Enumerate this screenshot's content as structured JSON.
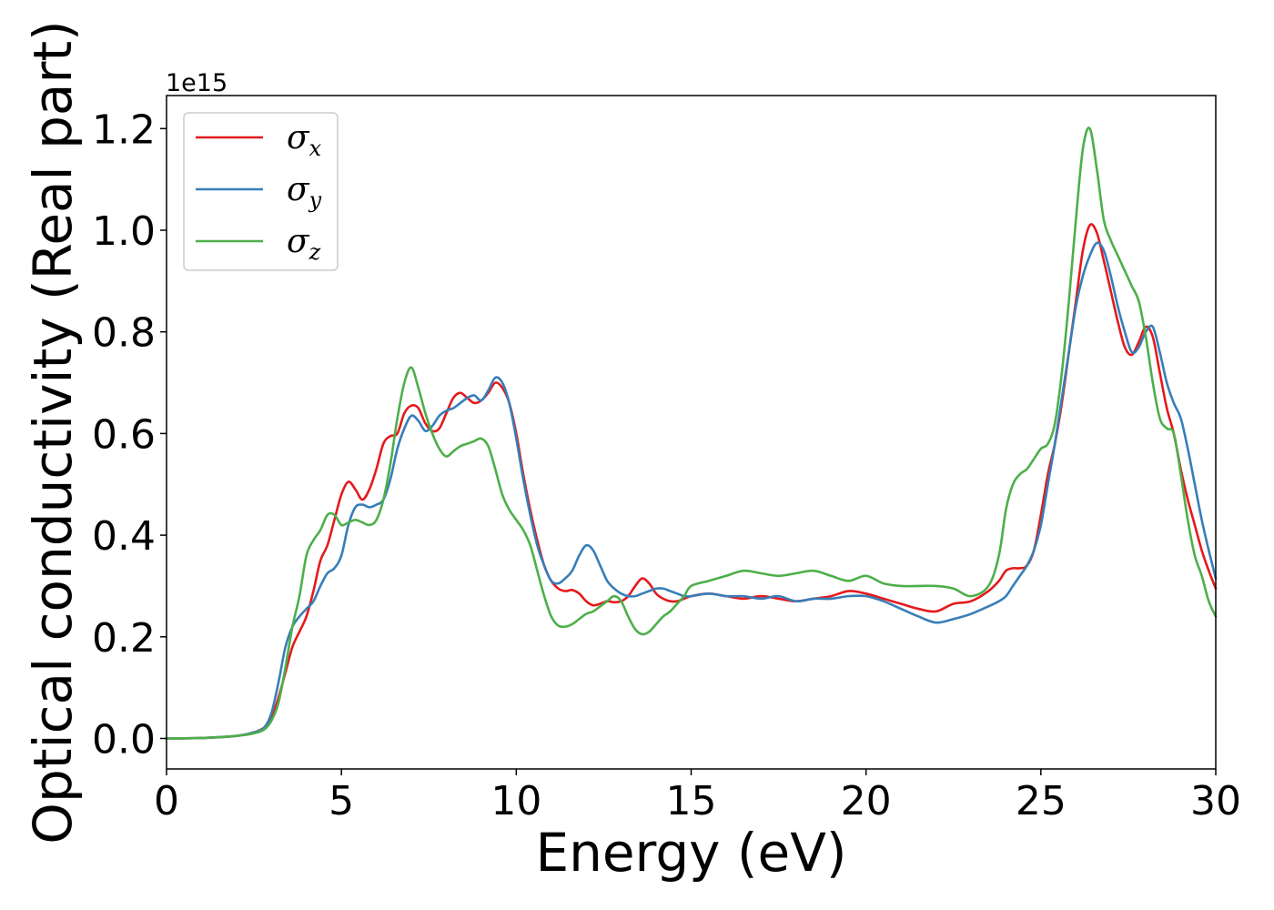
{
  "chart_data": {
    "type": "line",
    "title": "",
    "xlabel": "Energy (eV)",
    "ylabel": "Optical conductivity (Real part)",
    "y_offset_label": "1e15",
    "xlim": [
      0,
      30
    ],
    "ylim": [
      -0.06,
      1.265
    ],
    "x_ticks": [
      0,
      5,
      10,
      15,
      20,
      25,
      30
    ],
    "x_tick_labels": [
      "0",
      "5",
      "10",
      "15",
      "20",
      "25",
      "30"
    ],
    "y_ticks": [
      0.0,
      0.2,
      0.4,
      0.6,
      0.8,
      1.0,
      1.2
    ],
    "y_tick_labels": [
      "0.0",
      "0.2",
      "0.4",
      "0.6",
      "0.8",
      "1.0",
      "1.2"
    ],
    "grid": false,
    "legend_position": "top-left",
    "series": [
      {
        "name": "σx",
        "name_base": "σ",
        "name_sub": "x",
        "color": "#e41a1c",
        "x": [
          0,
          1,
          2,
          2.5,
          2.8,
          3.0,
          3.2,
          3.4,
          3.6,
          3.8,
          4.0,
          4.2,
          4.4,
          4.6,
          4.8,
          5.0,
          5.2,
          5.4,
          5.6,
          5.8,
          6.0,
          6.2,
          6.4,
          6.6,
          6.8,
          7.0,
          7.2,
          7.4,
          7.6,
          7.8,
          8.0,
          8.2,
          8.4,
          8.6,
          8.8,
          9.0,
          9.2,
          9.4,
          9.6,
          9.8,
          10.0,
          10.2,
          10.4,
          10.6,
          10.8,
          11.0,
          11.2,
          11.4,
          11.6,
          11.8,
          12.0,
          12.2,
          12.4,
          12.6,
          12.8,
          13.0,
          13.2,
          13.4,
          13.6,
          13.8,
          14.0,
          14.2,
          14.4,
          14.6,
          14.8,
          15.0,
          15.5,
          16.0,
          16.5,
          17.0,
          17.5,
          18.0,
          18.5,
          19.0,
          19.5,
          20.0,
          20.5,
          21.0,
          21.5,
          22.0,
          22.5,
          23.0,
          23.5,
          23.8,
          24.0,
          24.2,
          24.4,
          24.6,
          24.8,
          25.0,
          25.2,
          25.4,
          25.6,
          25.8,
          26.0,
          26.2,
          26.4,
          26.6,
          26.8,
          27.0,
          27.2,
          27.4,
          27.6,
          27.8,
          28.0,
          28.2,
          28.4,
          28.6,
          28.8,
          29.0,
          29.2,
          29.4,
          29.6,
          29.8,
          30.0
        ],
        "y": [
          0.0,
          0.001,
          0.005,
          0.012,
          0.022,
          0.04,
          0.08,
          0.13,
          0.18,
          0.21,
          0.24,
          0.29,
          0.35,
          0.38,
          0.43,
          0.48,
          0.505,
          0.49,
          0.47,
          0.49,
          0.53,
          0.58,
          0.595,
          0.6,
          0.64,
          0.655,
          0.65,
          0.62,
          0.605,
          0.61,
          0.64,
          0.67,
          0.68,
          0.67,
          0.66,
          0.665,
          0.68,
          0.7,
          0.69,
          0.66,
          0.6,
          0.52,
          0.45,
          0.39,
          0.34,
          0.31,
          0.295,
          0.29,
          0.292,
          0.285,
          0.27,
          0.262,
          0.265,
          0.27,
          0.268,
          0.27,
          0.28,
          0.3,
          0.315,
          0.305,
          0.285,
          0.275,
          0.27,
          0.27,
          0.275,
          0.28,
          0.285,
          0.28,
          0.275,
          0.28,
          0.275,
          0.27,
          0.275,
          0.28,
          0.29,
          0.285,
          0.275,
          0.265,
          0.255,
          0.25,
          0.265,
          0.27,
          0.29,
          0.31,
          0.33,
          0.335,
          0.335,
          0.34,
          0.37,
          0.44,
          0.52,
          0.58,
          0.66,
          0.76,
          0.86,
          0.96,
          1.01,
          0.995,
          0.94,
          0.88,
          0.82,
          0.77,
          0.755,
          0.78,
          0.81,
          0.79,
          0.72,
          0.65,
          0.6,
          0.53,
          0.47,
          0.42,
          0.37,
          0.33,
          0.295
        ]
      },
      {
        "name": "σy",
        "name_base": "σ",
        "name_sub": "y",
        "color": "#377eb8",
        "x": [
          0,
          1,
          2,
          2.5,
          2.8,
          3.0,
          3.2,
          3.4,
          3.6,
          3.8,
          4.0,
          4.2,
          4.4,
          4.6,
          4.8,
          5.0,
          5.2,
          5.4,
          5.6,
          5.8,
          6.0,
          6.2,
          6.4,
          6.6,
          6.8,
          7.0,
          7.2,
          7.4,
          7.6,
          7.8,
          8.0,
          8.2,
          8.4,
          8.6,
          8.8,
          9.0,
          9.2,
          9.4,
          9.6,
          9.8,
          10.0,
          10.2,
          10.4,
          10.6,
          10.8,
          11.0,
          11.2,
          11.4,
          11.6,
          11.8,
          12.0,
          12.2,
          12.4,
          12.6,
          12.8,
          13.0,
          13.2,
          13.4,
          13.6,
          13.8,
          14.0,
          14.2,
          14.4,
          14.6,
          14.8,
          15.0,
          15.5,
          16.0,
          16.5,
          17.0,
          17.5,
          18.0,
          18.5,
          19.0,
          19.5,
          20.0,
          20.5,
          21.0,
          21.5,
          22.0,
          22.5,
          23.0,
          23.5,
          23.8,
          24.0,
          24.2,
          24.4,
          24.6,
          24.8,
          25.0,
          25.2,
          25.4,
          25.6,
          25.8,
          26.0,
          26.2,
          26.4,
          26.6,
          26.8,
          27.0,
          27.2,
          27.4,
          27.6,
          27.8,
          28.0,
          28.2,
          28.4,
          28.6,
          28.8,
          29.0,
          29.2,
          29.4,
          29.6,
          29.8,
          30.0
        ],
        "y": [
          0.0,
          0.001,
          0.005,
          0.012,
          0.022,
          0.05,
          0.11,
          0.18,
          0.22,
          0.24,
          0.255,
          0.27,
          0.3,
          0.325,
          0.335,
          0.36,
          0.42,
          0.455,
          0.46,
          0.455,
          0.46,
          0.47,
          0.51,
          0.57,
          0.61,
          0.635,
          0.625,
          0.605,
          0.615,
          0.635,
          0.645,
          0.65,
          0.66,
          0.67,
          0.675,
          0.665,
          0.685,
          0.71,
          0.7,
          0.66,
          0.59,
          0.51,
          0.44,
          0.38,
          0.34,
          0.31,
          0.305,
          0.315,
          0.33,
          0.36,
          0.38,
          0.37,
          0.34,
          0.31,
          0.295,
          0.285,
          0.28,
          0.28,
          0.285,
          0.29,
          0.295,
          0.295,
          0.29,
          0.285,
          0.28,
          0.28,
          0.285,
          0.28,
          0.28,
          0.275,
          0.28,
          0.27,
          0.275,
          0.275,
          0.28,
          0.28,
          0.27,
          0.255,
          0.24,
          0.228,
          0.235,
          0.245,
          0.26,
          0.27,
          0.28,
          0.3,
          0.32,
          0.34,
          0.37,
          0.42,
          0.5,
          0.58,
          0.67,
          0.76,
          0.85,
          0.91,
          0.95,
          0.975,
          0.96,
          0.91,
          0.85,
          0.8,
          0.76,
          0.77,
          0.8,
          0.81,
          0.76,
          0.7,
          0.66,
          0.63,
          0.57,
          0.5,
          0.43,
          0.37,
          0.315
        ]
      },
      {
        "name": "σz",
        "name_base": "σ",
        "name_sub": "z",
        "color": "#4daf4a",
        "x": [
          0,
          1,
          2,
          2.5,
          2.8,
          3.0,
          3.2,
          3.4,
          3.6,
          3.8,
          4.0,
          4.2,
          4.4,
          4.6,
          4.8,
          5.0,
          5.2,
          5.4,
          5.6,
          5.8,
          6.0,
          6.2,
          6.4,
          6.6,
          6.8,
          7.0,
          7.2,
          7.4,
          7.6,
          7.8,
          8.0,
          8.2,
          8.4,
          8.6,
          8.8,
          9.0,
          9.2,
          9.4,
          9.6,
          9.8,
          10.0,
          10.2,
          10.4,
          10.6,
          10.8,
          11.0,
          11.2,
          11.4,
          11.6,
          11.8,
          12.0,
          12.2,
          12.4,
          12.6,
          12.8,
          13.0,
          13.2,
          13.4,
          13.6,
          13.8,
          14.0,
          14.2,
          14.4,
          14.6,
          14.8,
          15.0,
          15.5,
          16.0,
          16.5,
          17.0,
          17.5,
          18.0,
          18.5,
          19.0,
          19.5,
          20.0,
          20.5,
          21.0,
          21.5,
          22.0,
          22.5,
          23.0,
          23.5,
          23.8,
          24.0,
          24.2,
          24.4,
          24.6,
          24.8,
          25.0,
          25.2,
          25.4,
          25.6,
          25.8,
          26.0,
          26.2,
          26.4,
          26.6,
          26.8,
          27.0,
          27.2,
          27.4,
          27.6,
          27.8,
          28.0,
          28.2,
          28.4,
          28.6,
          28.8,
          29.0,
          29.2,
          29.4,
          29.6,
          29.8,
          30.0
        ],
        "y": [
          0.0,
          0.001,
          0.005,
          0.01,
          0.018,
          0.035,
          0.07,
          0.14,
          0.22,
          0.28,
          0.36,
          0.39,
          0.41,
          0.44,
          0.44,
          0.42,
          0.425,
          0.43,
          0.425,
          0.42,
          0.43,
          0.47,
          0.54,
          0.63,
          0.7,
          0.73,
          0.69,
          0.64,
          0.6,
          0.57,
          0.555,
          0.565,
          0.575,
          0.58,
          0.585,
          0.59,
          0.575,
          0.53,
          0.48,
          0.45,
          0.43,
          0.41,
          0.38,
          0.33,
          0.28,
          0.24,
          0.222,
          0.22,
          0.225,
          0.235,
          0.245,
          0.25,
          0.26,
          0.27,
          0.28,
          0.27,
          0.24,
          0.215,
          0.205,
          0.21,
          0.225,
          0.24,
          0.25,
          0.265,
          0.28,
          0.3,
          0.31,
          0.32,
          0.33,
          0.325,
          0.32,
          0.325,
          0.33,
          0.32,
          0.31,
          0.32,
          0.305,
          0.3,
          0.3,
          0.3,
          0.295,
          0.28,
          0.3,
          0.36,
          0.45,
          0.5,
          0.52,
          0.53,
          0.55,
          0.57,
          0.58,
          0.62,
          0.72,
          0.86,
          1.02,
          1.16,
          1.2,
          1.12,
          1.02,
          0.98,
          0.95,
          0.92,
          0.89,
          0.86,
          0.79,
          0.7,
          0.63,
          0.61,
          0.6,
          0.52,
          0.43,
          0.36,
          0.32,
          0.27,
          0.24
        ]
      }
    ]
  }
}
